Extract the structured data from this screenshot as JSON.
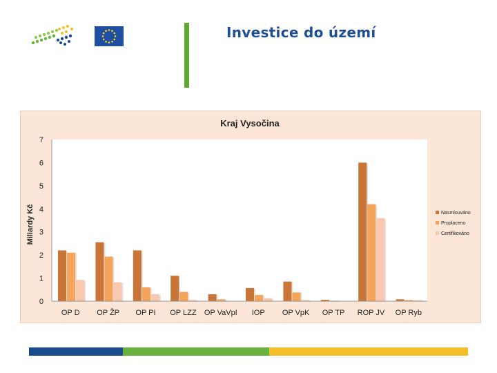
{
  "header": {
    "title": "Investice do území"
  },
  "colors": {
    "series_1": "#c87537",
    "series_2": "#f5a45a",
    "series_3": "#f9c8ae",
    "brand_blue": "#1f4f95",
    "accent_green": "#5aaa2c"
  },
  "chart_data": {
    "type": "bar",
    "title": "Kraj Vysočina",
    "xlabel": "",
    "ylabel": "Miliardy Kč",
    "ylim": [
      0,
      7
    ],
    "yticks": [
      0,
      1,
      2,
      3,
      4,
      5,
      6,
      7
    ],
    "grid": false,
    "legend_position": "right",
    "categories": [
      "OP D",
      "OP ŽP",
      "OP PI",
      "OP LZZ",
      "OP VaVpI",
      "IOP",
      "OP VpK",
      "OP TP",
      "ROP JV",
      "OP Ryb"
    ],
    "series": [
      {
        "name": "Nasmlouváno",
        "values": [
          2.2,
          2.55,
          2.2,
          1.1,
          0.3,
          0.57,
          0.85,
          0.06,
          6.0,
          0.08
        ]
      },
      {
        "name": "Proplaceno",
        "values": [
          2.1,
          1.93,
          0.6,
          0.4,
          0.08,
          0.27,
          0.38,
          0.02,
          4.2,
          0.05
        ]
      },
      {
        "name": "Certifikováno",
        "values": [
          0.92,
          0.82,
          0.3,
          0.05,
          0.0,
          0.13,
          0.05,
          0.0,
          3.6,
          0.04
        ]
      }
    ]
  }
}
